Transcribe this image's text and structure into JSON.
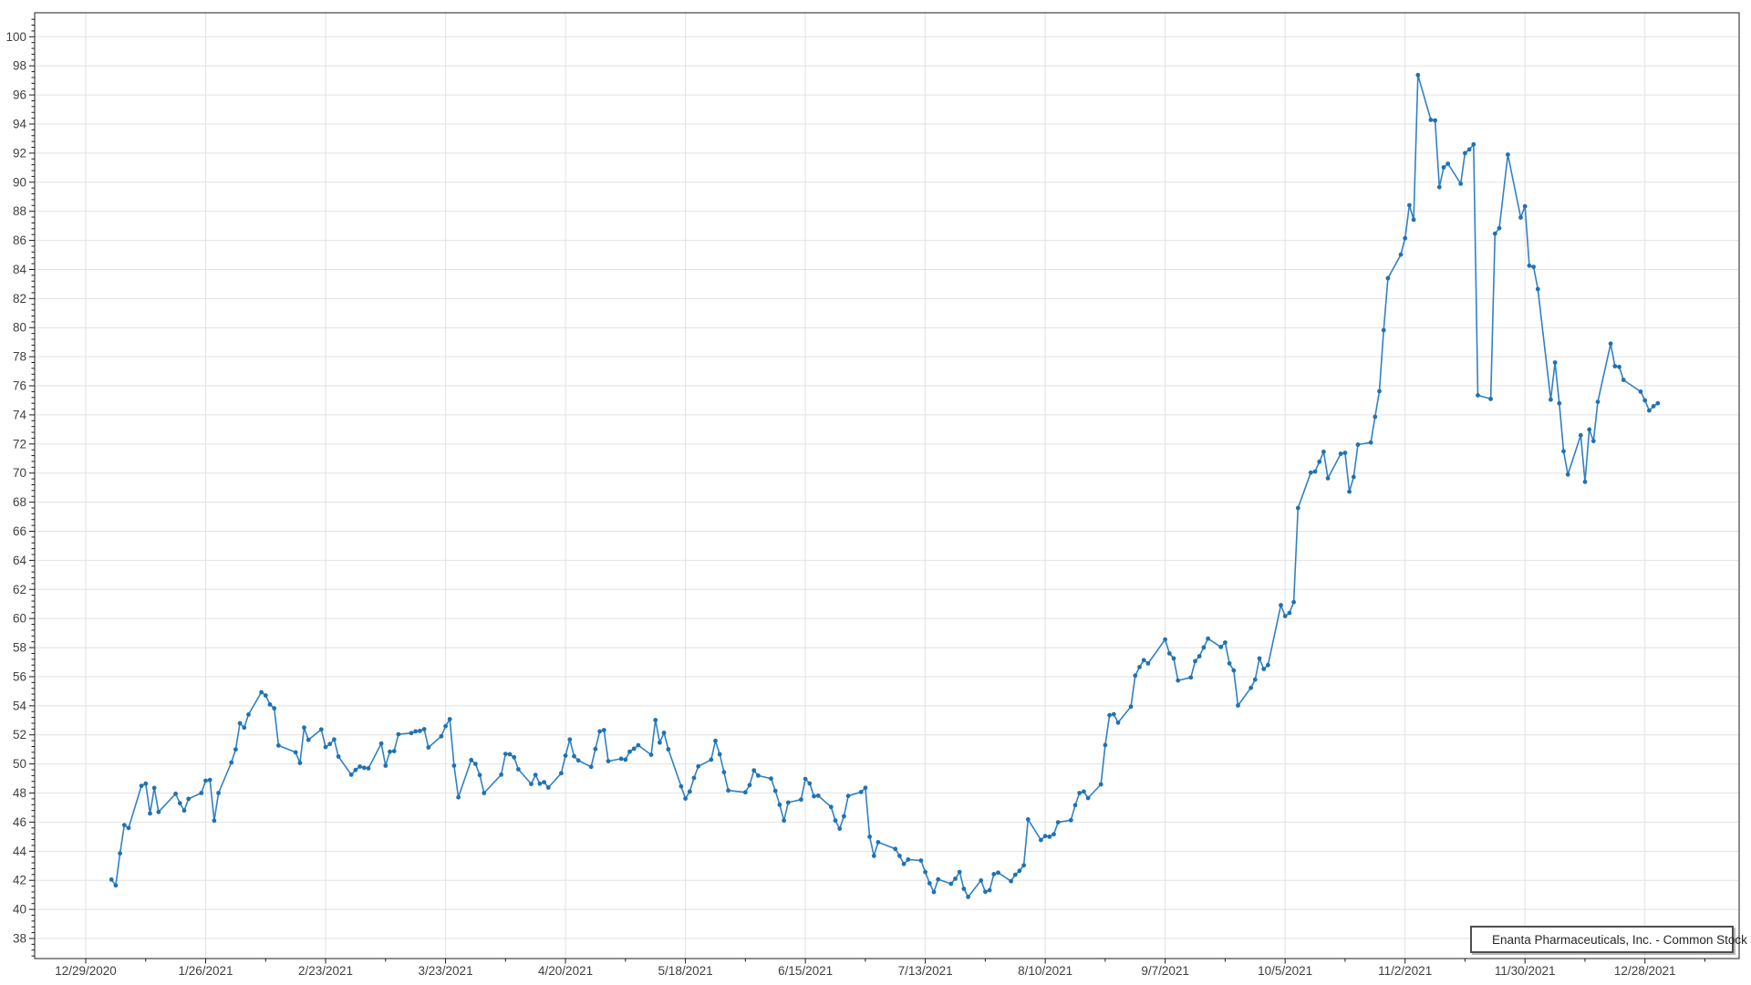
{
  "chart_data": {
    "type": "line",
    "title": "",
    "legend": {
      "label": "Enanta Pharmaceuticals, Inc. - Common Stock",
      "position": "bottom-right"
    },
    "x_axis": {
      "origin_date": "12/29/2020",
      "major_tick_labels": [
        "12/29/2020",
        "1/26/2021",
        "2/23/2021",
        "3/23/2021",
        "4/20/2021",
        "5/18/2021",
        "6/15/2021",
        "7/13/2021",
        "8/10/2021",
        "9/7/2021",
        "10/5/2021",
        "11/2/2021",
        "11/30/2021",
        "12/28/2021"
      ],
      "major_interval_days": 28,
      "minor_interval_days": 14,
      "range_days": [
        -11.923,
        385.99
      ]
    },
    "y_axis": {
      "tick_min": 38,
      "tick_max": 100,
      "tick_step": 2,
      "minor_step": 0.4,
      "range": [
        36.62,
        101.65
      ]
    },
    "grid": true,
    "colors": {
      "line": "#3181c3",
      "marker": "#1f72b2",
      "grid": "#e2e2e2",
      "axis": "#1c1c1c",
      "tick_text": "#3f3f3f",
      "legend_border": "#4f4f4f",
      "background": "#ffffff"
    },
    "series": [
      {
        "name": "Enanta Pharmaceuticals, Inc. - Common Stock",
        "marker": "circle",
        "dates": [
          "1/4/2021",
          "1/5/2021",
          "1/6/2021",
          "1/7/2021",
          "1/8/2021",
          "1/11/2021",
          "1/12/2021",
          "1/13/2021",
          "1/14/2021",
          "1/15/2021",
          "1/19/2021",
          "1/20/2021",
          "1/21/2021",
          "1/22/2021",
          "1/25/2021",
          "1/26/2021",
          "1/27/2021",
          "1/28/2021",
          "1/29/2021",
          "2/1/2021",
          "2/2/2021",
          "2/3/2021",
          "2/4/2021",
          "2/5/2021",
          "2/8/2021",
          "2/9/2021",
          "2/10/2021",
          "2/11/2021",
          "2/12/2021",
          "2/16/2021",
          "2/17/2021",
          "2/18/2021",
          "2/19/2021",
          "2/22/2021",
          "2/23/2021",
          "2/24/2021",
          "2/25/2021",
          "2/26/2021",
          "3/1/2021",
          "3/2/2021",
          "3/3/2021",
          "3/4/2021",
          "3/5/2021",
          "3/8/2021",
          "3/9/2021",
          "3/10/2021",
          "3/11/2021",
          "3/12/2021",
          "3/15/2021",
          "3/16/2021",
          "3/17/2021",
          "3/18/2021",
          "3/19/2021",
          "3/22/2021",
          "3/23/2021",
          "3/24/2021",
          "3/25/2021",
          "3/26/2021",
          "3/29/2021",
          "3/30/2021",
          "3/31/2021",
          "4/1/2021",
          "4/5/2021",
          "4/6/2021",
          "4/7/2021",
          "4/8/2021",
          "4/9/2021",
          "4/12/2021",
          "4/13/2021",
          "4/14/2021",
          "4/15/2021",
          "4/16/2021",
          "4/19/2021",
          "4/20/2021",
          "4/21/2021",
          "4/22/2021",
          "4/23/2021",
          "4/26/2021",
          "4/27/2021",
          "4/28/2021",
          "4/29/2021",
          "4/30/2021",
          "5/3/2021",
          "5/4/2021",
          "5/5/2021",
          "5/6/2021",
          "5/7/2021",
          "5/10/2021",
          "5/11/2021",
          "5/12/2021",
          "5/13/2021",
          "5/14/2021",
          "5/17/2021",
          "5/18/2021",
          "5/19/2021",
          "5/20/2021",
          "5/21/2021",
          "5/24/2021",
          "5/25/2021",
          "5/26/2021",
          "5/27/2021",
          "5/28/2021",
          "6/1/2021",
          "6/2/2021",
          "6/3/2021",
          "6/4/2021",
          "6/7/2021",
          "6/8/2021",
          "6/9/2021",
          "6/10/2021",
          "6/11/2021",
          "6/14/2021",
          "6/15/2021",
          "6/16/2021",
          "6/17/2021",
          "6/18/2021",
          "6/21/2021",
          "6/22/2021",
          "6/23/2021",
          "6/24/2021",
          "6/25/2021",
          "6/28/2021",
          "6/29/2021",
          "6/30/2021",
          "7/1/2021",
          "7/2/2021",
          "7/6/2021",
          "7/7/2021",
          "7/8/2021",
          "7/9/2021",
          "7/12/2021",
          "7/13/2021",
          "7/14/2021",
          "7/15/2021",
          "7/16/2021",
          "7/19/2021",
          "7/20/2021",
          "7/21/2021",
          "7/22/2021",
          "7/23/2021",
          "7/26/2021",
          "7/27/2021",
          "7/28/2021",
          "7/29/2021",
          "7/30/2021",
          "8/2/2021",
          "8/3/2021",
          "8/4/2021",
          "8/5/2021",
          "8/6/2021",
          "8/9/2021",
          "8/10/2021",
          "8/11/2021",
          "8/12/2021",
          "8/13/2021",
          "8/16/2021",
          "8/17/2021",
          "8/18/2021",
          "8/19/2021",
          "8/20/2021",
          "8/23/2021",
          "8/24/2021",
          "8/25/2021",
          "8/26/2021",
          "8/27/2021",
          "8/30/2021",
          "8/31/2021",
          "9/1/2021",
          "9/2/2021",
          "9/3/2021",
          "9/7/2021",
          "9/8/2021",
          "9/9/2021",
          "9/10/2021",
          "9/13/2021",
          "9/14/2021",
          "9/15/2021",
          "9/16/2021",
          "9/17/2021",
          "9/20/2021",
          "9/21/2021",
          "9/22/2021",
          "9/23/2021",
          "9/24/2021",
          "9/27/2021",
          "9/28/2021",
          "9/29/2021",
          "9/30/2021",
          "10/1/2021",
          "10/4/2021",
          "10/5/2021",
          "10/6/2021",
          "10/7/2021",
          "10/8/2021",
          "10/11/2021",
          "10/12/2021",
          "10/13/2021",
          "10/14/2021",
          "10/15/2021",
          "10/18/2021",
          "10/19/2021",
          "10/20/2021",
          "10/21/2021",
          "10/22/2021",
          "10/25/2021",
          "10/26/2021",
          "10/27/2021",
          "10/28/2021",
          "10/29/2021",
          "11/1/2021",
          "11/2/2021",
          "11/3/2021",
          "11/4/2021",
          "11/5/2021",
          "11/8/2021",
          "11/9/2021",
          "11/10/2021",
          "11/11/2021",
          "11/12/2021",
          "11/15/2021",
          "11/16/2021",
          "11/17/2021",
          "11/18/2021",
          "11/19/2021",
          "11/22/2021",
          "11/23/2021",
          "11/24/2021",
          "11/26/2021",
          "11/29/2021",
          "11/30/2021",
          "12/1/2021",
          "12/2/2021",
          "12/3/2021",
          "12/6/2021",
          "12/7/2021",
          "12/8/2021",
          "12/9/2021",
          "12/10/2021",
          "12/13/2021",
          "12/14/2021",
          "12/15/2021",
          "12/16/2021",
          "12/17/2021",
          "12/20/2021",
          "12/21/2021",
          "12/22/2021",
          "12/23/2021",
          "12/27/2021",
          "12/28/2021",
          "12/29/2021",
          "12/30/2021",
          "12/31/2021"
        ],
        "values": [
          42.05,
          41.65,
          43.85,
          45.8,
          45.6,
          48.5,
          48.65,
          46.6,
          48.35,
          46.7,
          47.95,
          47.3,
          46.8,
          47.6,
          48.0,
          48.85,
          48.9,
          46.1,
          48.0,
          50.1,
          51.0,
          52.8,
          52.5,
          53.4,
          54.93,
          54.71,
          54.09,
          53.83,
          51.27,
          50.8,
          50.07,
          52.5,
          51.66,
          52.37,
          51.16,
          51.37,
          51.68,
          50.51,
          49.26,
          49.59,
          49.82,
          49.74,
          49.7,
          51.41,
          49.88,
          50.84,
          50.88,
          52.04,
          52.12,
          52.24,
          52.27,
          52.39,
          51.14,
          51.9,
          52.6,
          53.08,
          49.88,
          47.71,
          50.27,
          50.0,
          49.24,
          48.0,
          49.26,
          50.69,
          50.67,
          50.46,
          49.63,
          48.62,
          49.25,
          48.64,
          48.75,
          48.38,
          49.36,
          50.57,
          51.68,
          50.53,
          50.24,
          49.8,
          51.03,
          52.24,
          52.33,
          50.19,
          50.36,
          50.3,
          50.84,
          51.05,
          51.29,
          50.63,
          53.02,
          51.47,
          52.14,
          51.01,
          48.46,
          47.62,
          48.1,
          49.04,
          49.83,
          50.3,
          51.59,
          50.67,
          49.43,
          48.18,
          48.05,
          48.55,
          49.56,
          49.2,
          48.99,
          48.15,
          47.2,
          46.11,
          47.35,
          47.55,
          48.97,
          48.66,
          47.78,
          47.82,
          47.04,
          46.11,
          45.55,
          46.4,
          47.8,
          48.07,
          48.36,
          45.0,
          43.68,
          44.62,
          44.16,
          43.68,
          43.12,
          43.43,
          43.36,
          42.57,
          41.8,
          41.19,
          42.07,
          41.76,
          42.11,
          42.57,
          41.42,
          40.86,
          41.99,
          41.21,
          41.32,
          42.43,
          42.53,
          41.94,
          42.38,
          42.65,
          43.03,
          46.19,
          44.77,
          45.04,
          45.0,
          45.17,
          45.99,
          46.13,
          47.17,
          48.0,
          48.1,
          47.66,
          48.6,
          51.3,
          53.35,
          53.42,
          52.84,
          53.94,
          56.07,
          56.66,
          57.14,
          56.91,
          58.56,
          57.6,
          57.26,
          55.74,
          55.95,
          57.07,
          57.41,
          58.01,
          58.62,
          58.04,
          58.35,
          56.91,
          56.43,
          54.02,
          55.23,
          55.8,
          57.26,
          56.53,
          56.8,
          60.92,
          60.17,
          60.38,
          61.13,
          67.6,
          70.03,
          70.1,
          70.78,
          71.47,
          69.64,
          71.33,
          71.39,
          68.72,
          69.74,
          71.96,
          72.1,
          73.87,
          75.63,
          79.83,
          83.4,
          85.02,
          86.15,
          88.42,
          87.42,
          97.37,
          94.29,
          94.25,
          89.66,
          91.02,
          91.27,
          89.9,
          92.0,
          92.25,
          92.6,
          75.35,
          75.1,
          86.46,
          86.84,
          91.9,
          87.57,
          88.34,
          84.26,
          84.18,
          82.65,
          75.05,
          77.6,
          74.8,
          71.5,
          69.9,
          72.6,
          69.4,
          73.0,
          72.2,
          74.9,
          78.9,
          77.35,
          77.3,
          76.4,
          75.6,
          75.0,
          74.3,
          74.6,
          74.8
        ]
      }
    ]
  }
}
